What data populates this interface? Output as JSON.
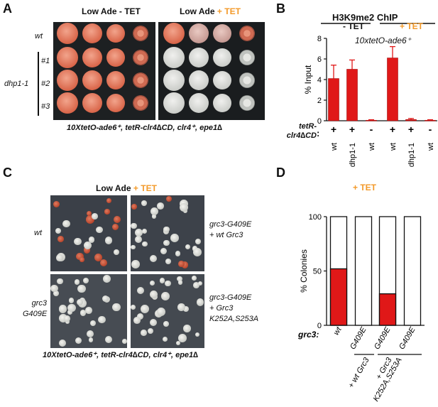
{
  "panel_labels": {
    "a": "A",
    "b": "B",
    "c": "C",
    "d": "D"
  },
  "panel_a": {
    "header_left": "Low Ade - TET",
    "header_right_prefix": "Low Ade",
    "header_right_tet": "+ TET",
    "row_wt": "wt",
    "group_label": "dhp1-1",
    "rows": [
      "#1",
      "#2",
      "#3"
    ],
    "caption": "10XtetO-ade6⁺, tetR-clr4∆CD, clr4⁺, epe1∆"
  },
  "panel_b": {
    "title": "H3K9me2 ChIP",
    "group_minus": "- TET",
    "group_plus": "+ TET",
    "locus": "10xtetO-ade6⁺",
    "row_label": "tetR-clr4∆CD",
    "row_label_line1": "tetR-",
    "row_label_line2": "clr4∆CD",
    "signs": [
      "+",
      "+",
      "-",
      "+",
      "+",
      "-"
    ],
    "colors": {
      "bar": "#e01818",
      "tet": "#f39a2a"
    },
    "chart_data": {
      "type": "bar",
      "ylabel": "% Input",
      "ylim": [
        0,
        8
      ],
      "yticks": [
        0,
        2,
        4,
        6,
        8
      ],
      "categories": [
        "wt",
        "dhp1-1",
        "wt",
        "wt",
        "dhp1-1",
        "wt"
      ],
      "values": [
        4.1,
        5.0,
        0.05,
        6.1,
        0.12,
        0.05
      ],
      "errors": [
        1.3,
        0.9,
        0.05,
        1.1,
        0.1,
        0.05
      ]
    }
  },
  "panel_c": {
    "header_prefix": "Low Ade",
    "header_tet": "+ TET",
    "row_wt": "wt",
    "row_mut_line1": "grc3",
    "row_mut_line2": "G409E",
    "right_top_line1": "grc3-G409E",
    "right_top_line2": "+ wt Grc3",
    "right_bot_line1": "grc3-G409E",
    "right_bot_line2": "+ Grc3",
    "right_bot_line3": "K252A,S253A",
    "caption": "10XtetO-ade6⁺, tetR-clr4∆CD, clr4⁺, epe1∆"
  },
  "panel_d": {
    "title": "+ TET",
    "row_label": "grc3:",
    "group1": "+ wt Grc3",
    "group2_line1": "+ Grc3",
    "group2_line2": "K252A,S253A",
    "colors": {
      "red": "#e01818"
    },
    "chart_data": {
      "type": "bar",
      "stacked": true,
      "ylabel": "% Colonies",
      "ylim": [
        0,
        100
      ],
      "yticks": [
        0,
        50,
        100
      ],
      "categories": [
        "wt",
        "G409E",
        "G409E",
        "G409E"
      ],
      "series": [
        {
          "values": [
            52,
            0,
            29,
            0
          ]
        },
        {
          "values": [
            48,
            100,
            71,
            100
          ]
        }
      ]
    }
  }
}
